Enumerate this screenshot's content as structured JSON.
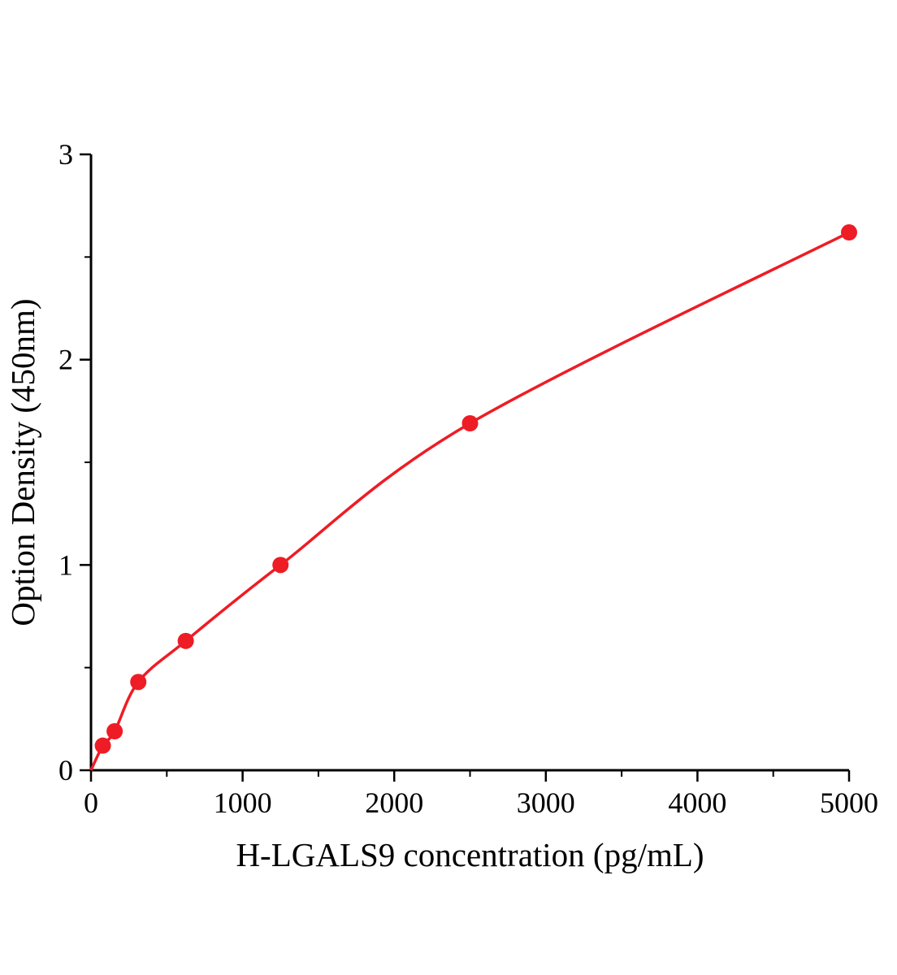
{
  "chart_data": {
    "type": "scatter",
    "title": "",
    "xlabel": "H-LGALS9 concentration (pg/mL)",
    "ylabel": "Option Density (450nm)",
    "x": [
      78,
      156,
      312,
      625,
      1250,
      2500,
      5000
    ],
    "y": [
      0.12,
      0.19,
      0.43,
      0.63,
      1.0,
      1.69,
      2.62
    ],
    "curve_origin": {
      "x": 0,
      "y": 0
    },
    "xlim": [
      0,
      5000
    ],
    "ylim": [
      0,
      3
    ],
    "x_major_ticks": [
      0,
      1000,
      2000,
      3000,
      4000,
      5000
    ],
    "x_minor_ticks": [
      500,
      1500,
      2500,
      3500,
      4500
    ],
    "y_major_ticks": [
      0,
      1,
      2,
      3
    ],
    "y_minor_ticks": [
      0.5,
      1.5,
      2.5
    ],
    "grid": "off",
    "legend": "none",
    "line_color": "#ee1c25",
    "marker_color": "#ee1c25",
    "axis_color": "#000000"
  }
}
